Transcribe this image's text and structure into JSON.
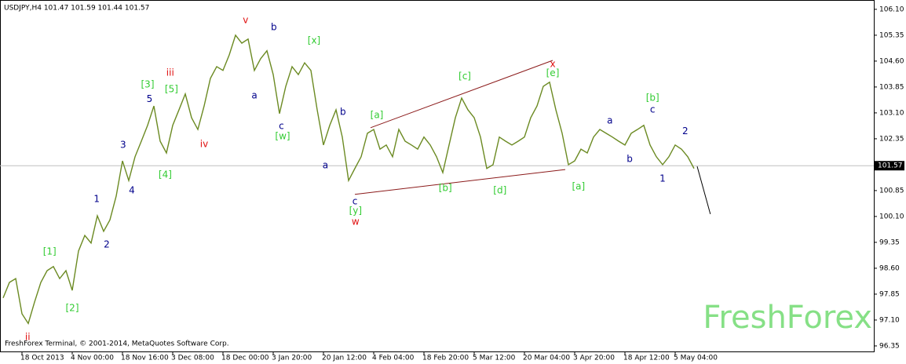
{
  "chart_data": {
    "type": "line",
    "title": "USDJPY,H4  101.47 101.59 101.44 101.57",
    "footer": "FreshForex Terminal, © 2001-2014, MetaQuotes Software Corp.",
    "watermark": "FreshForex",
    "last_price": 101.57,
    "categories": [
      null,
      null,
      null,
      "18 Oct 2013",
      null,
      null,
      null,
      null,
      null,
      null,
      null,
      "4 Nov 00:00",
      null,
      null,
      null,
      null,
      null,
      null,
      null,
      "18 Nov 16:00",
      null,
      null,
      null,
      null,
      null,
      null,
      null,
      "3 Dec 08:00",
      null,
      null,
      null,
      null,
      null,
      null,
      null,
      "18 Dec 00:00",
      null,
      null,
      null,
      null,
      null,
      null,
      null,
      "3 Jan 20:00",
      null,
      null,
      null,
      null,
      null,
      null,
      null,
      "20 Jan 12:00",
      null,
      null,
      null,
      null,
      null,
      null,
      null,
      "4 Feb 04:00",
      null,
      null,
      null,
      null,
      null,
      null,
      null,
      "18 Feb 20:00",
      null,
      null,
      null,
      null,
      null,
      null,
      null,
      "5 Mar 12:00",
      null,
      null,
      null,
      null,
      null,
      null,
      null,
      "20 Mar 04:00",
      null,
      null,
      null,
      null,
      null,
      null,
      null,
      "3 Apr 20:00",
      null,
      null,
      null,
      null,
      null,
      null,
      null,
      "18 Apr 12:00",
      null,
      null,
      null,
      null,
      null,
      null,
      null,
      "5 May 04:00",
      null,
      null,
      null
    ],
    "series": [
      {
        "name": "USDJPY",
        "color": "#6b8a22",
        "values": [
          97.74,
          98.19,
          98.3,
          97.28,
          97.0,
          97.62,
          98.19,
          98.53,
          98.65,
          98.3,
          98.53,
          97.96,
          99.1,
          99.55,
          99.33,
          100.12,
          99.67,
          100.0,
          100.69,
          101.71,
          101.14,
          101.83,
          102.28,
          102.74,
          103.3,
          102.28,
          101.94,
          102.74,
          103.19,
          103.65,
          102.96,
          102.62,
          103.3,
          104.1,
          104.44,
          104.33,
          104.78,
          105.35,
          105.12,
          105.24,
          104.33,
          104.67,
          104.9,
          104.21,
          103.08,
          103.87,
          104.44,
          104.21,
          104.55,
          104.33,
          103.19,
          102.17,
          102.74,
          103.19,
          102.4,
          101.14,
          101.49,
          101.83,
          102.51,
          102.62,
          102.05,
          102.17,
          101.83,
          102.62,
          102.28,
          102.17,
          102.05,
          102.4,
          102.17,
          101.83,
          101.37,
          102.17,
          102.96,
          103.53,
          103.19,
          102.96,
          102.4,
          101.49,
          101.6,
          102.4,
          102.28,
          102.17,
          102.28,
          102.4,
          102.96,
          103.3,
          103.87,
          103.99,
          103.19,
          102.51,
          101.6,
          101.71,
          102.05,
          101.94,
          102.4,
          102.62,
          102.51,
          102.4,
          102.28,
          102.17,
          102.51,
          102.62,
          102.74,
          102.17,
          101.83,
          101.6,
          101.83,
          102.17,
          102.05,
          101.83,
          101.49
        ]
      }
    ],
    "ylim": [
      96.19,
      106.37
    ],
    "yticks": [
      {
        "value": 106.1,
        "label": "106.10"
      },
      105.35,
      {
        "value": 104.6,
        "label": "104.60"
      },
      103.85,
      {
        "value": 103.1,
        "label": "103.10"
      },
      102.35,
      100.85,
      {
        "value": 100.1,
        "label": "100.10"
      },
      99.35,
      {
        "value": 98.6,
        "label": "98.60"
      },
      97.85,
      {
        "value": 97.1,
        "label": "97.10"
      },
      96.35
    ],
    "annotations": [
      {
        "label": "ii",
        "x": 3.9,
        "y": 96.6,
        "color": "#e01010"
      },
      {
        "label": "[1]",
        "x": 7.4,
        "y": 99.08,
        "color": "#33cc33"
      },
      {
        "label": "[2]",
        "x": 11,
        "y": 97.44,
        "color": "#33cc33"
      },
      {
        "label": "1",
        "x": 14.9,
        "y": 100.6,
        "color": "#00008b"
      },
      {
        "label": "2",
        "x": 16.5,
        "y": 99.28,
        "color": "#00008b"
      },
      {
        "label": "3",
        "x": 19.1,
        "y": 102.17,
        "color": "#00008b"
      },
      {
        "label": "4",
        "x": 20.5,
        "y": 100.85,
        "color": "#00008b"
      },
      {
        "label": "5",
        "x": 23.3,
        "y": 103.49,
        "color": "#00008b"
      },
      {
        "label": "[3]",
        "x": 23,
        "y": 103.92,
        "color": "#33cc33"
      },
      {
        "label": "[5]",
        "x": 26.8,
        "y": 103.78,
        "color": "#33cc33"
      },
      {
        "label": "[4]",
        "x": 25.8,
        "y": 101.3,
        "color": "#33cc33"
      },
      {
        "label": "iii",
        "x": 26.6,
        "y": 104.26,
        "color": "#e01010"
      },
      {
        "label": "iv",
        "x": 32,
        "y": 102.19,
        "color": "#e01010"
      },
      {
        "label": "v",
        "x": 38.6,
        "y": 105.78,
        "color": "#e01010"
      },
      {
        "label": "b",
        "x": 43.1,
        "y": 105.58,
        "color": "#00008b"
      },
      {
        "label": "a",
        "x": 40,
        "y": 103.6,
        "color": "#00008b"
      },
      {
        "label": "c",
        "x": 44.3,
        "y": 102.71,
        "color": "#00008b"
      },
      {
        "label": "[w]",
        "x": 44.5,
        "y": 102.42,
        "color": "#33cc33"
      },
      {
        "label": "[x]",
        "x": 49.5,
        "y": 105.19,
        "color": "#33cc33"
      },
      {
        "label": "a",
        "x": 51.3,
        "y": 101.58,
        "color": "#00008b"
      },
      {
        "label": "b",
        "x": 54.1,
        "y": 103.12,
        "color": "#00008b"
      },
      {
        "label": "c",
        "x": 56,
        "y": 100.53,
        "color": "#00008b"
      },
      {
        "label": "[y]",
        "x": 56.1,
        "y": 100.26,
        "color": "#33cc33"
      },
      {
        "label": "w",
        "x": 56.1,
        "y": 99.94,
        "color": "#e01010"
      },
      {
        "label": "[a]",
        "x": 59.5,
        "y": 103.03,
        "color": "#33cc33"
      },
      {
        "label": "[b]",
        "x": 70.4,
        "y": 100.92,
        "color": "#33cc33"
      },
      {
        "label": "[c]",
        "x": 73.5,
        "y": 104.15,
        "color": "#33cc33"
      },
      {
        "label": "[d]",
        "x": 79.1,
        "y": 100.85,
        "color": "#33cc33"
      },
      {
        "label": "x",
        "x": 87.5,
        "y": 104.51,
        "color": "#e01010"
      },
      {
        "label": "[e]",
        "x": 87.5,
        "y": 104.24,
        "color": "#33cc33"
      },
      {
        "label": "[a]",
        "x": 91.6,
        "y": 100.96,
        "color": "#33cc33"
      },
      {
        "label": "a",
        "x": 96.6,
        "y": 102.87,
        "color": "#00008b"
      },
      {
        "label": "b",
        "x": 99.75,
        "y": 101.76,
        "color": "#00008b"
      },
      {
        "label": "c",
        "x": 103.4,
        "y": 103.19,
        "color": "#00008b"
      },
      {
        "label": "[b]",
        "x": 103.4,
        "y": 103.53,
        "color": "#33cc33"
      },
      {
        "label": "1",
        "x": 105,
        "y": 101.19,
        "color": "#00008b"
      },
      {
        "label": "2",
        "x": 108.6,
        "y": 102.56,
        "color": "#00008b"
      }
    ],
    "lines": [
      {
        "x0": 58.5,
        "y0": 102.67,
        "x1": 87.5,
        "y1": 104.62,
        "color": "#8b1a1a"
      },
      {
        "x0": 56,
        "y0": 100.74,
        "x1": 89.5,
        "y1": 101.46,
        "color": "#8b1a1a"
      },
      {
        "x0": 110.5,
        "y0": 101.55,
        "x1": 112.6,
        "y1": 100.17,
        "color": "#000000"
      }
    ]
  }
}
